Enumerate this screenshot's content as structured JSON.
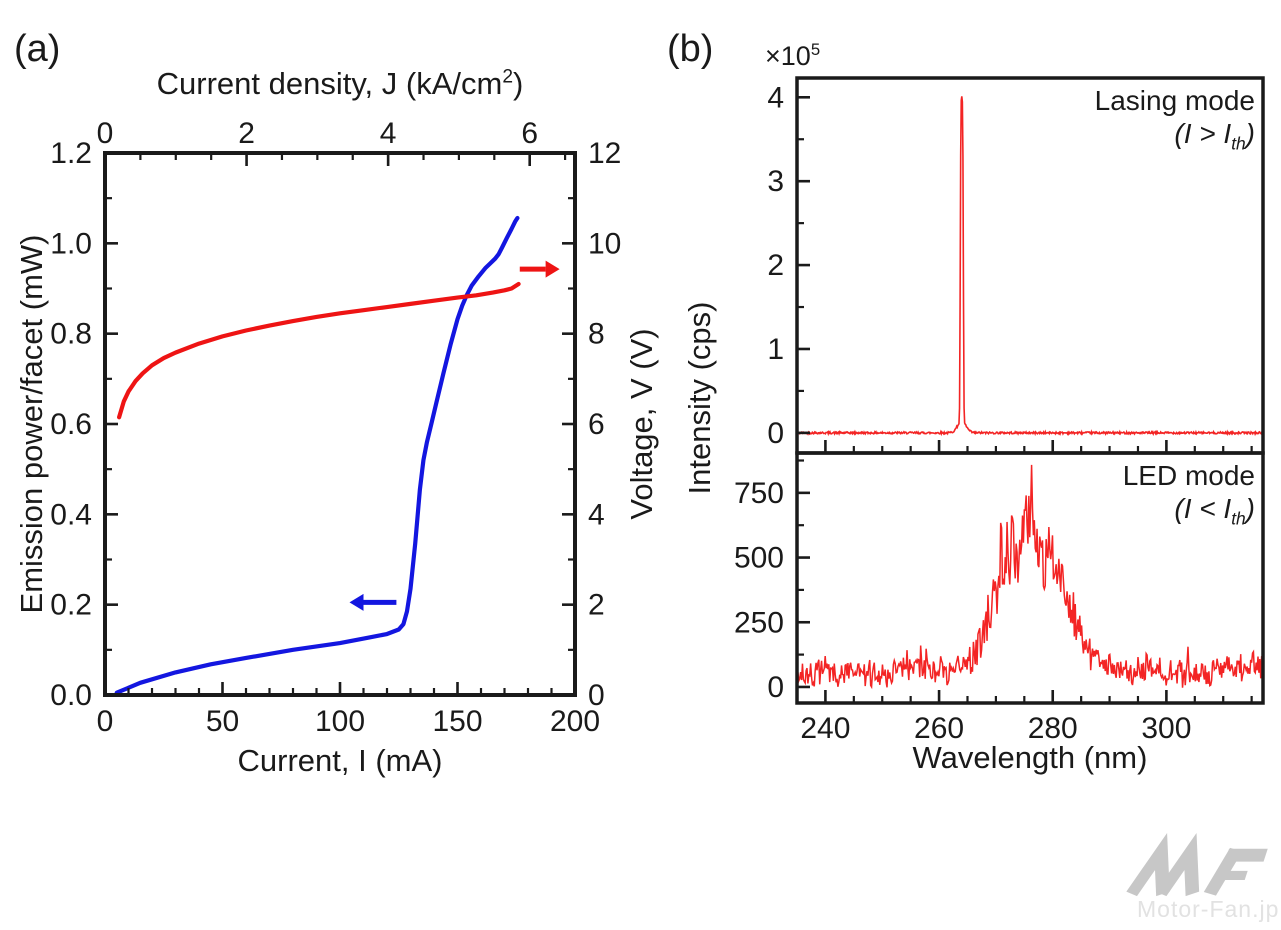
{
  "page": {
    "background": "#ffffff",
    "text_color": "#1a1a1a"
  },
  "panel_a": {
    "label": "(a)",
    "axis_titles": {
      "top": {
        "pre": "Current density, J (kA/cm",
        "sup": "2",
        "post": ")"
      },
      "bottom": "Current, I (mA)",
      "left": "Emission power/facet (mW)",
      "right": "Voltage, V (V)"
    }
  },
  "panel_b": {
    "label": "(b)",
    "multiplier": {
      "base": "×10",
      "exp": "5"
    },
    "axis_titles": {
      "left": "Intensity (cps)",
      "bottom": "Wavelength (nm)"
    },
    "lasing_annotation": {
      "line1": "Lasing mode",
      "open": "(",
      "sym1": "I",
      "rel": " > ",
      "sym2": "I",
      "sub": "th",
      "close": ")"
    },
    "led_annotation": {
      "line1": "LED mode",
      "open": "(",
      "sym1": "I",
      "rel": " < ",
      "sym2": "I",
      "sub": "th",
      "close": ")"
    }
  },
  "watermark": {
    "text": "Motor-Fan.jp",
    "logo_color": "#c7c7c7",
    "text_color": "#e2e2e2"
  },
  "chart_data": [
    {
      "id": "panel-a-liv",
      "type": "line",
      "x_bottom": {
        "label": "Current, I (mA)",
        "range": [
          0,
          200
        ],
        "major_ticks": [
          0,
          50,
          100,
          150,
          200
        ],
        "tick_labels": [
          "0",
          "50",
          "100",
          "150",
          "200"
        ],
        "minor_step": 10
      },
      "x_top": {
        "label": "Current density, J (kA/cm^2)",
        "range": [
          0,
          6.64
        ],
        "major_ticks": [
          0,
          2,
          4,
          6
        ],
        "tick_labels": [
          "0",
          "2",
          "4",
          "6"
        ],
        "minor_step": 0.5
      },
      "y_left": {
        "label": "Emission power/facet (mW)",
        "range": [
          0,
          1.2
        ],
        "major_ticks": [
          0,
          0.2,
          0.4,
          0.6,
          0.8,
          1.0,
          1.2
        ],
        "tick_labels": [
          "0.0",
          "0.2",
          "0.4",
          "0.6",
          "0.8",
          "1.0",
          "1.2"
        ],
        "minor_step": 0.1
      },
      "y_right": {
        "label": "Voltage, V (V)",
        "range": [
          0,
          12
        ],
        "major_ticks": [
          0,
          2,
          4,
          6,
          8,
          10,
          12
        ],
        "tick_labels": [
          "0",
          "2",
          "4",
          "6",
          "8",
          "10",
          "12"
        ],
        "minor_step": 1
      },
      "series": [
        {
          "name": "emission-power-curve",
          "axis": "left",
          "color": "#1316e0",
          "width": 4.2,
          "points": [
            [
              5,
              0.005
            ],
            [
              15,
              0.027
            ],
            [
              30,
              0.05
            ],
            [
              45,
              0.068
            ],
            [
              60,
              0.082
            ],
            [
              80,
              0.1
            ],
            [
              100,
              0.115
            ],
            [
              112,
              0.127
            ],
            [
              120,
              0.135
            ],
            [
              125,
              0.145
            ],
            [
              127,
              0.157
            ],
            [
              128.5,
              0.185
            ],
            [
              130,
              0.235
            ],
            [
              132,
              0.335
            ],
            [
              134,
              0.455
            ],
            [
              135.5,
              0.52
            ],
            [
              137,
              0.56
            ],
            [
              139,
              0.603
            ],
            [
              141,
              0.647
            ],
            [
              144,
              0.712
            ],
            [
              147,
              0.775
            ],
            [
              150,
              0.832
            ],
            [
              152,
              0.862
            ],
            [
              154,
              0.886
            ],
            [
              156,
              0.906
            ],
            [
              159,
              0.927
            ],
            [
              162,
              0.946
            ],
            [
              164,
              0.956
            ],
            [
              166,
              0.966
            ],
            [
              167.5,
              0.976
            ],
            [
              169,
              0.991
            ],
            [
              171,
              1.012
            ],
            [
              173,
              1.032
            ],
            [
              174.5,
              1.048
            ],
            [
              175.5,
              1.056
            ]
          ]
        },
        {
          "name": "voltage-curve",
          "axis": "right",
          "color": "#ee1414",
          "width": 4.2,
          "points": [
            [
              6,
              6.15
            ],
            [
              8,
              6.5
            ],
            [
              10,
              6.72
            ],
            [
              13,
              6.95
            ],
            [
              16,
              7.12
            ],
            [
              20,
              7.3
            ],
            [
              25,
              7.46
            ],
            [
              30,
              7.58
            ],
            [
              40,
              7.78
            ],
            [
              50,
              7.94
            ],
            [
              60,
              8.07
            ],
            [
              70,
              8.18
            ],
            [
              80,
              8.28
            ],
            [
              90,
              8.37
            ],
            [
              100,
              8.45
            ],
            [
              110,
              8.52
            ],
            [
              120,
              8.59
            ],
            [
              130,
              8.66
            ],
            [
              140,
              8.73
            ],
            [
              150,
              8.8
            ],
            [
              158,
              8.85
            ],
            [
              165,
              8.91
            ],
            [
              170,
              8.96
            ],
            [
              173,
              9.0
            ],
            [
              176,
              9.1
            ]
          ]
        }
      ],
      "arrows": [
        {
          "name": "power-axis-arrow",
          "axis": "left",
          "color": "#1316e0",
          "from": [
            124,
            0.205
          ],
          "to": [
            110,
            0.205
          ]
        },
        {
          "name": "voltage-axis-arrow",
          "axis": "right",
          "color": "#ee1414",
          "from": [
            176.5,
            9.43
          ],
          "to": [
            187.5,
            9.43
          ]
        }
      ]
    },
    {
      "id": "panel-b-lasing",
      "type": "line",
      "annotation": [
        "Lasing mode",
        "(I > Ith)"
      ],
      "x": {
        "range": [
          235,
          317
        ],
        "major_ticks": [
          240,
          260,
          280,
          300
        ],
        "minor_step": 5,
        "show_labels": false
      },
      "y": {
        "range": [
          -0.24,
          4.23
        ],
        "major_ticks": [
          0,
          1,
          2,
          3,
          4
        ],
        "tick_labels": [
          "0",
          "1",
          "2",
          "3",
          "4"
        ],
        "minor_step": 0.5,
        "scale_note": "x10^5 cps"
      },
      "series_name": "lasing-spectrum-curve",
      "color": "#f32424",
      "width": 1.6,
      "peak": {
        "wavelength_nm": 264,
        "intensity_1e5": 4.0,
        "pedestal_height_1e5": 0.14,
        "pedestal_sigma_nm": 1.05,
        "core_sigma_nm": 0.3,
        "baseline_1e5": 0.0,
        "noise_amplitude_1e5": 0.012
      }
    },
    {
      "id": "panel-b-led",
      "type": "line",
      "annotation": [
        "LED mode",
        "(I < Ith)"
      ],
      "x": {
        "label": "Wavelength (nm)",
        "range": [
          235,
          317
        ],
        "major_ticks": [
          240,
          260,
          280,
          300
        ],
        "tick_labels": [
          "240",
          "260",
          "280",
          "300"
        ],
        "minor_step": 5,
        "show_labels": true
      },
      "y": {
        "range": [
          -62,
          904
        ],
        "major_ticks": [
          0,
          250,
          500,
          750
        ],
        "tick_labels": [
          "0",
          "250",
          "500",
          "750"
        ],
        "minor_step": 125
      },
      "series_name": "led-spectrum-curve",
      "color": "#f32424",
      "width": 1.5,
      "envelope_points": [
        [
          235,
          55
        ],
        [
          250,
          55
        ],
        [
          255,
          95
        ],
        [
          258,
          70
        ],
        [
          262,
          65
        ],
        [
          265,
          95
        ],
        [
          267,
          170
        ],
        [
          269,
          330
        ],
        [
          271,
          500
        ],
        [
          273,
          600
        ],
        [
          275,
          655
        ],
        [
          276,
          680
        ],
        [
          277,
          640
        ],
        [
          278.5,
          570
        ],
        [
          280,
          500
        ],
        [
          281.5,
          445
        ],
        [
          283,
          330
        ],
        [
          285,
          215
        ],
        [
          287,
          140
        ],
        [
          289,
          95
        ],
        [
          292,
          65
        ],
        [
          295,
          75
        ],
        [
          297,
          95
        ],
        [
          300,
          60
        ],
        [
          305,
          55
        ],
        [
          310,
          65
        ],
        [
          313,
          85
        ],
        [
          317,
          95
        ]
      ],
      "noise": {
        "amplitude": 95,
        "envelope_jitter": 0.22
      },
      "max_spike": {
        "wavelength_nm": 276.3,
        "intensity": 858
      }
    }
  ]
}
